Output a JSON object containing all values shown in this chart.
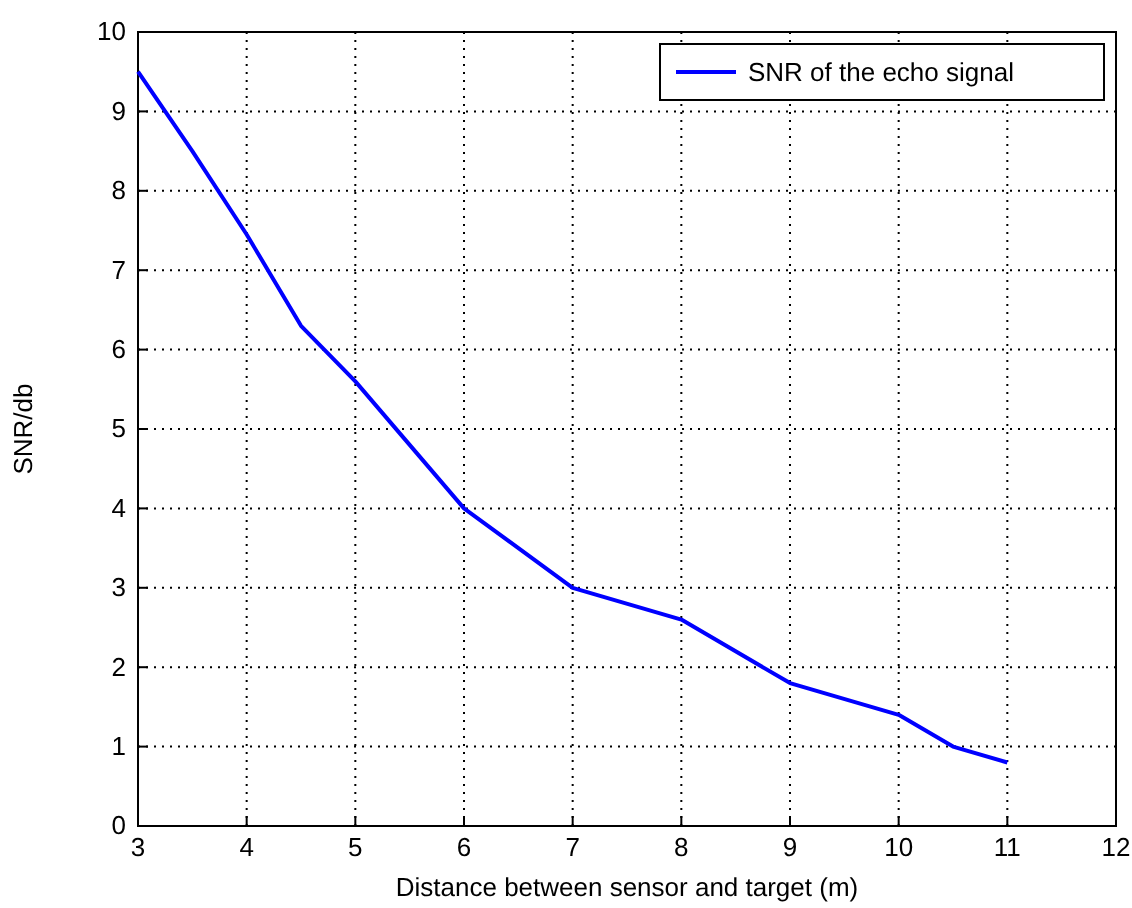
{
  "chart_data": {
    "type": "line",
    "xlabel": "Distance between sensor and target (m)",
    "ylabel": "SNR/db",
    "x": [
      3,
      3.5,
      4,
      4.5,
      5,
      6,
      7,
      8,
      9,
      10,
      10.5,
      11
    ],
    "series": [
      {
        "name": "SNR of the echo signal",
        "color": "#0000ff",
        "values": [
          9.5,
          8.5,
          7.45,
          6.3,
          5.6,
          4.0,
          3.0,
          2.6,
          1.8,
          1.4,
          1.0,
          0.8
        ]
      }
    ],
    "xlim": [
      3,
      12
    ],
    "xticks": [
      3,
      4,
      5,
      6,
      7,
      8,
      9,
      10,
      11,
      12
    ],
    "ylim": [
      0,
      10
    ],
    "yticks": [
      0,
      1,
      2,
      3,
      4,
      5,
      6,
      7,
      8,
      9,
      10
    ],
    "grid": true,
    "legend": "top right",
    "line_style": "solid"
  }
}
